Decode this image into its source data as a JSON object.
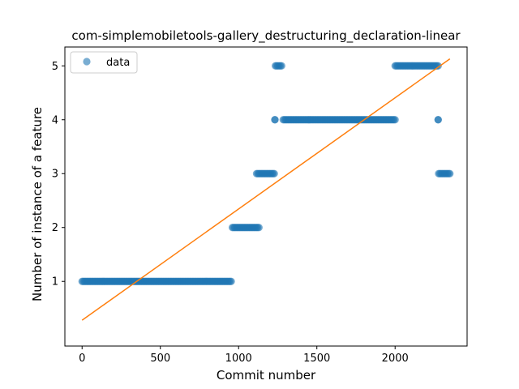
{
  "chart_data": {
    "type": "scatter",
    "title": "com-simplemobiletools-gallery_destructuring_declaration-linear",
    "xlabel": "Commit number",
    "ylabel": "Number of instance of a feature",
    "xlim": [
      -110,
      2460
    ],
    "ylim": [
      -0.2,
      5.35
    ],
    "xticks": [
      0,
      500,
      1000,
      1500,
      2000
    ],
    "yticks": [
      1,
      2,
      3,
      4,
      5
    ],
    "grid": false,
    "legend": {
      "placement": "upper-left"
    },
    "series": [
      {
        "name": "data",
        "kind": "points",
        "color": "#1f77b4",
        "segments": [
          {
            "x_start": 0,
            "x_end": 953,
            "y": 1
          },
          {
            "x_start": 960,
            "x_end": 1130,
            "y": 2
          },
          {
            "x_start": 1115,
            "x_end": 1228,
            "y": 3
          },
          {
            "x_start": 1232,
            "x_end": 1232,
            "y": 4
          },
          {
            "x_start": 1235,
            "x_end": 1275,
            "y": 5
          },
          {
            "x_start": 1285,
            "x_end": 2000,
            "y": 4
          },
          {
            "x_start": 2000,
            "x_end": 2275,
            "y": 5
          },
          {
            "x_start": 2275,
            "x_end": 2275,
            "y": 4
          },
          {
            "x_start": 2278,
            "x_end": 2350,
            "y": 3
          }
        ]
      },
      {
        "kind": "line",
        "color": "#ff7f0e",
        "x": [
          0,
          2350
        ],
        "y": [
          0.28,
          5.13
        ]
      }
    ]
  }
}
